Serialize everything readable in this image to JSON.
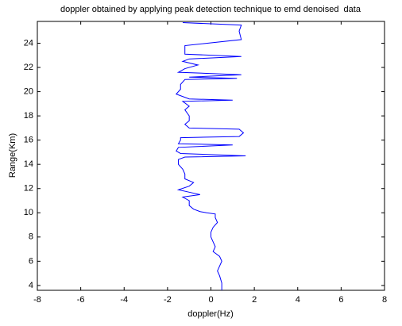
{
  "chart_data": {
    "type": "line",
    "title": "doppler obtained by applying peak detection technique to emd denoised  data",
    "x_label": "doppler(Hz)",
    "y_label": "Range(Km)",
    "xlim": [
      -8,
      8
    ],
    "ylim": [
      3.6,
      25.8
    ],
    "xticks": [
      -8,
      -6,
      -4,
      -2,
      0,
      2,
      4,
      6,
      8
    ],
    "yticks": [
      4,
      6,
      8,
      10,
      12,
      14,
      16,
      18,
      20,
      22,
      24
    ],
    "x": [
      0.5,
      0.5,
      0.4,
      0.3,
      0.4,
      0.5,
      0.4,
      0.1,
      0.2,
      0.1,
      0.0,
      0.0,
      0.1,
      0.3,
      0.2,
      0.2,
      -0.2,
      -0.5,
      -0.8,
      -1.0,
      -1.0,
      -1.3,
      -0.5,
      -1.0,
      -1.5,
      -1.0,
      -0.8,
      -1.2,
      -1.2,
      -1.3,
      -1.5,
      -1.5,
      -1.2,
      1.6,
      -1.4,
      -1.6,
      -1.5,
      1.0,
      -1.5,
      -1.4,
      -1.4,
      1.3,
      1.5,
      1.3,
      -1.0,
      -1.2,
      -1.0,
      -1.0,
      -1.2,
      -1.0,
      -1.3,
      1.0,
      -1.0,
      -1.6,
      -1.4,
      -1.4,
      -1.2,
      1.2,
      -1.0,
      1.4,
      -1.5,
      -1.2,
      -0.6,
      -1.3,
      -1.0,
      1.4,
      -1.2,
      -1.2,
      -1.2,
      1.4,
      1.3,
      1.4,
      -1.3
    ],
    "series": [
      {
        "color": "#0000ff",
        "values": [
          3.6,
          4.2,
          4.8,
          5.2,
          5.6,
          6.0,
          6.4,
          6.8,
          7.2,
          7.6,
          8.0,
          8.4,
          8.8,
          9.2,
          9.6,
          9.9,
          10.0,
          10.1,
          10.3,
          10.6,
          11.0,
          11.3,
          11.5,
          11.7,
          11.9,
          12.2,
          12.5,
          12.8,
          13.2,
          13.6,
          14.0,
          14.4,
          14.6,
          14.7,
          14.9,
          15.1,
          15.4,
          15.6,
          15.7,
          16.0,
          16.2,
          16.3,
          16.6,
          16.9,
          17.0,
          17.3,
          17.6,
          18.0,
          18.5,
          18.8,
          19.2,
          19.3,
          19.4,
          19.8,
          20.2,
          20.6,
          21.0,
          21.1,
          21.2,
          21.4,
          21.6,
          21.9,
          22.2,
          22.5,
          22.7,
          22.9,
          23.1,
          23.5,
          23.8,
          24.3,
          25.0,
          25.5,
          25.7
        ]
      }
    ]
  }
}
